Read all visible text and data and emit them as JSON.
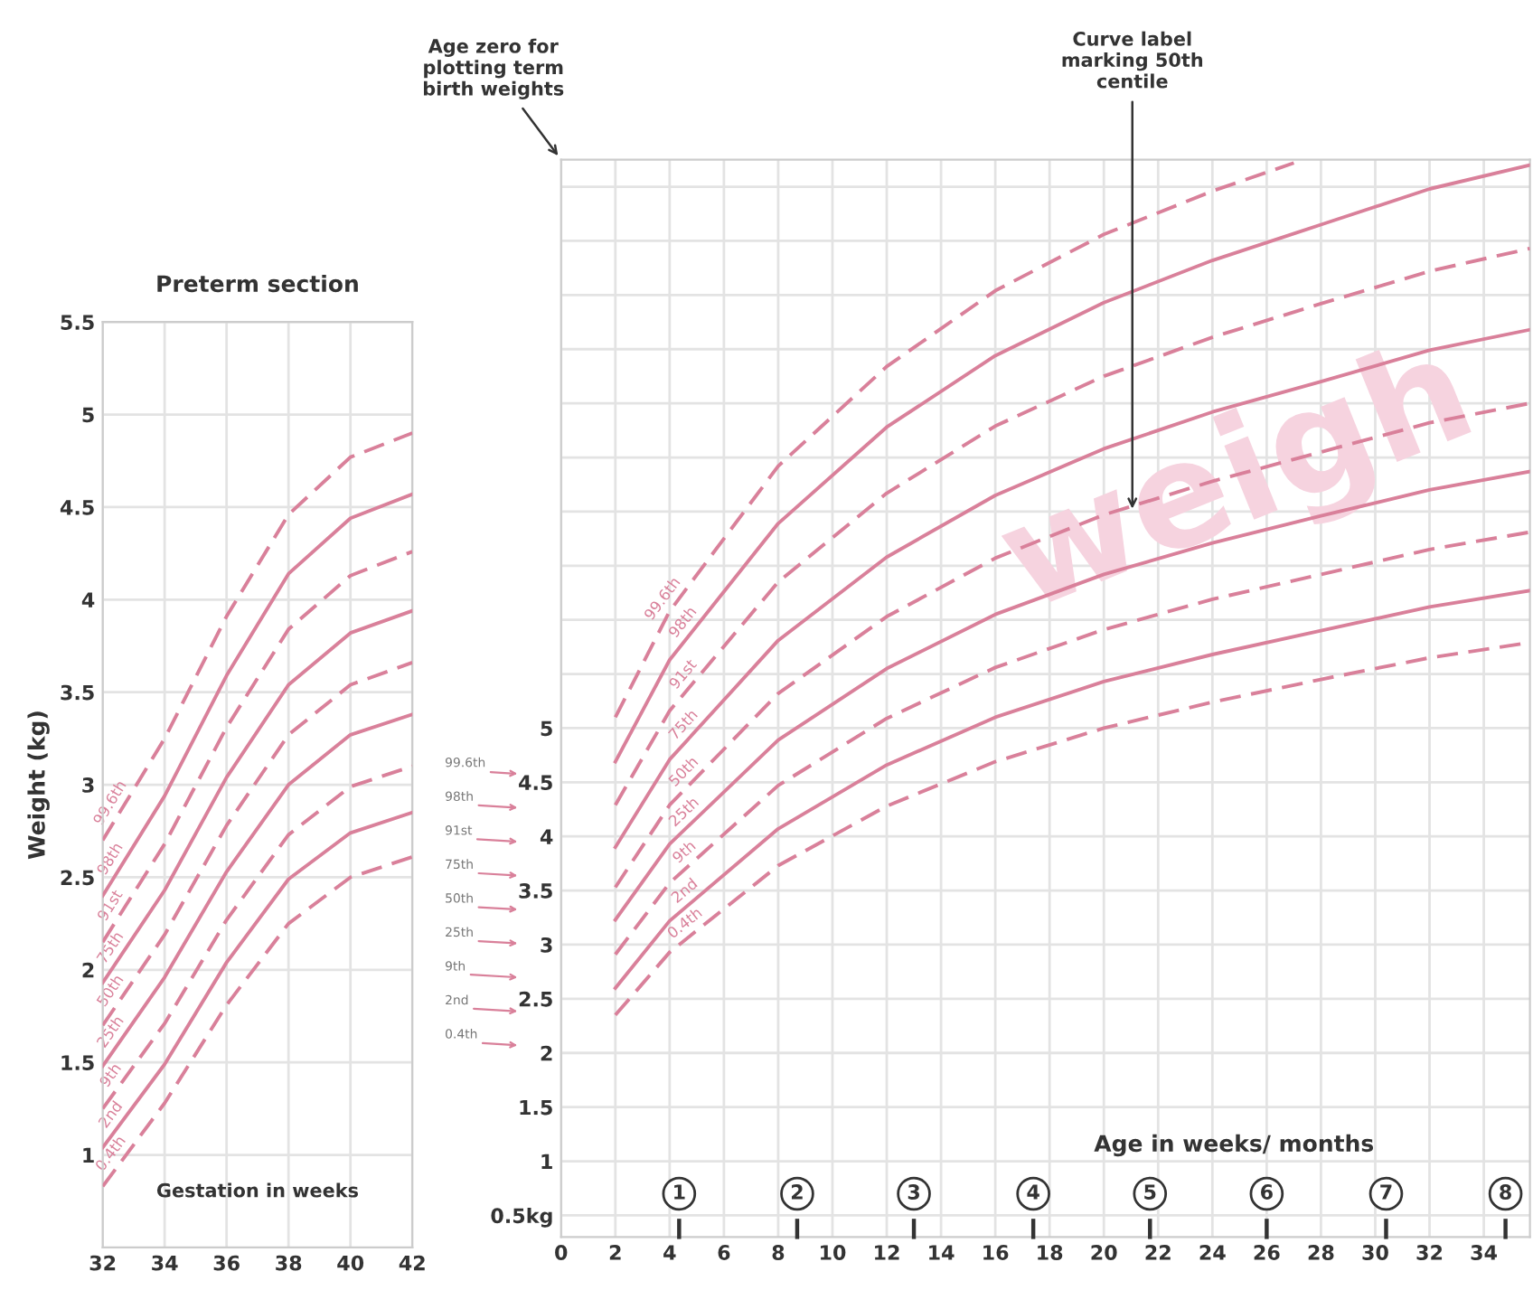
{
  "chart_data": [
    {
      "type": "line",
      "title": "Preterm section",
      "xlabel": "Gestation in weeks",
      "ylabel": "Weight (kg)",
      "xlim": [
        32,
        42
      ],
      "ylim": [
        0.5,
        5.5
      ],
      "xticks": [
        32,
        34,
        36,
        38,
        40,
        42
      ],
      "yticks": [
        1,
        1.5,
        2,
        2.5,
        3,
        3.5,
        4,
        4.5,
        5,
        5.5
      ],
      "grid": true,
      "legend": false,
      "series": [
        {
          "name": "99.6th",
          "color": "#d9809a",
          "line_style": "dashed",
          "x": [
            32,
            34,
            36,
            38,
            40,
            42
          ],
          "values": [
            2.7,
            3.25,
            3.91,
            4.46,
            4.77,
            4.9
          ]
        },
        {
          "name": "98th",
          "color": "#d9809a",
          "line_style": "solid",
          "x": [
            32,
            34,
            36,
            38,
            40,
            42
          ],
          "values": [
            2.4,
            2.94,
            3.59,
            4.14,
            4.44,
            4.57
          ]
        },
        {
          "name": "91st",
          "color": "#d9809a",
          "line_style": "dashed",
          "x": [
            32,
            34,
            36,
            38,
            40,
            42
          ],
          "values": [
            2.15,
            2.68,
            3.31,
            3.84,
            4.13,
            4.26
          ]
        },
        {
          "name": "75th",
          "color": "#d9809a",
          "line_style": "solid",
          "x": [
            32,
            34,
            36,
            38,
            40,
            42
          ],
          "values": [
            1.93,
            2.43,
            3.04,
            3.54,
            3.82,
            3.94
          ]
        },
        {
          "name": "50th",
          "color": "#d9809a",
          "line_style": "dashed",
          "x": [
            32,
            34,
            36,
            38,
            40,
            42
          ],
          "values": [
            1.7,
            2.19,
            2.78,
            3.27,
            3.54,
            3.66
          ]
        },
        {
          "name": "25th",
          "color": "#d9809a",
          "line_style": "solid",
          "x": [
            32,
            34,
            36,
            38,
            40,
            42
          ],
          "values": [
            1.48,
            1.96,
            2.53,
            3.0,
            3.27,
            3.38
          ]
        },
        {
          "name": "9th",
          "color": "#d9809a",
          "line_style": "dashed",
          "x": [
            32,
            34,
            36,
            38,
            40,
            42
          ],
          "values": [
            1.25,
            1.71,
            2.27,
            2.73,
            2.99,
            3.1
          ]
        },
        {
          "name": "2nd",
          "color": "#d9809a",
          "line_style": "solid",
          "x": [
            32,
            34,
            36,
            38,
            40,
            42
          ],
          "values": [
            1.04,
            1.49,
            2.04,
            2.49,
            2.74,
            2.85
          ]
        },
        {
          "name": "0.4th",
          "color": "#d9809a",
          "line_style": "dashed",
          "x": [
            32,
            34,
            36,
            38,
            40,
            42
          ],
          "values": [
            0.83,
            1.28,
            1.81,
            2.25,
            2.5,
            2.61
          ]
        }
      ]
    },
    {
      "type": "line",
      "xlabel": "Age in weeks/ months",
      "xlim": [
        0,
        35.7
      ],
      "ylim": [
        0.3,
        10.25
      ],
      "xticks": [
        0,
        2,
        4,
        6,
        8,
        10,
        12,
        14,
        16,
        18,
        20,
        22,
        24,
        26,
        28,
        30,
        32,
        34
      ],
      "yticks": [
        {
          "value": 0.5,
          "label": "0.5kg"
        },
        1,
        1.5,
        2,
        2.5,
        3,
        3.5,
        4,
        4.5,
        5,
        {
          "value": 5.5,
          "label": null
        },
        {
          "value": 6,
          "label": null
        },
        {
          "value": 6.5,
          "label": null
        },
        {
          "value": 7,
          "label": null
        },
        {
          "value": 7.5,
          "label": null
        },
        {
          "value": 8,
          "label": null
        },
        {
          "value": 8.5,
          "label": null
        },
        {
          "value": 9,
          "label": null
        },
        {
          "value": 9.5,
          "label": null
        },
        {
          "value": 10,
          "label": null
        }
      ],
      "grid": true,
      "legend": false,
      "series": [
        {
          "name": "99.6th",
          "color": "#d9809a",
          "line_style": "dashed",
          "x": [
            2,
            4,
            8,
            12,
            16,
            20,
            24,
            27
          ],
          "values": [
            5.1,
            6.08,
            7.42,
            8.34,
            9.04,
            9.56,
            9.96,
            10.22
          ]
        },
        {
          "name": "98th",
          "color": "#d9809a",
          "line_style": "solid",
          "x": [
            2,
            4,
            8,
            12,
            16,
            20,
            24,
            28,
            32,
            35.7
          ],
          "values": [
            4.69,
            5.63,
            6.89,
            7.78,
            8.44,
            8.93,
            9.32,
            9.65,
            9.98,
            10.2
          ]
        },
        {
          "name": "91st",
          "color": "#d9809a",
          "line_style": "dashed",
          "x": [
            2,
            4,
            8,
            12,
            16,
            20,
            24,
            28,
            32,
            35.7
          ],
          "values": [
            4.29,
            5.16,
            6.35,
            7.17,
            7.79,
            8.25,
            8.61,
            8.92,
            9.22,
            9.43
          ]
        },
        {
          "name": "75th",
          "color": "#d9809a",
          "line_style": "solid",
          "x": [
            2,
            4,
            8,
            12,
            16,
            20,
            24,
            28,
            32,
            35.7
          ],
          "values": [
            3.9,
            4.71,
            5.81,
            6.58,
            7.15,
            7.58,
            7.92,
            8.2,
            8.49,
            8.68
          ]
        },
        {
          "name": "50th",
          "color": "#d9809a",
          "line_style": "dashed",
          "x": [
            2,
            4,
            8,
            12,
            16,
            20,
            24,
            28,
            32,
            35.7
          ],
          "values": [
            3.53,
            4.29,
            5.32,
            6.03,
            6.57,
            6.97,
            7.28,
            7.55,
            7.82,
            8.0
          ]
        },
        {
          "name": "25th",
          "color": "#d9809a",
          "line_style": "solid",
          "x": [
            2,
            4,
            8,
            12,
            16,
            20,
            24,
            28,
            32,
            35.7
          ],
          "values": [
            3.23,
            3.93,
            4.89,
            5.55,
            6.05,
            6.42,
            6.71,
            6.96,
            7.2,
            7.37
          ]
        },
        {
          "name": "9th",
          "color": "#d9809a",
          "line_style": "dashed",
          "x": [
            2,
            4,
            8,
            12,
            16,
            20,
            24,
            28,
            32,
            35.7
          ],
          "values": [
            2.91,
            3.57,
            4.47,
            5.09,
            5.56,
            5.91,
            6.19,
            6.42,
            6.65,
            6.81
          ]
        },
        {
          "name": "2nd",
          "color": "#d9809a",
          "line_style": "solid",
          "x": [
            2,
            4,
            8,
            12,
            16,
            20,
            24,
            28,
            32,
            35.7
          ],
          "values": [
            2.6,
            3.22,
            4.07,
            4.66,
            5.1,
            5.43,
            5.68,
            5.9,
            6.12,
            6.27
          ]
        },
        {
          "name": "0.4th",
          "color": "#d9809a",
          "line_style": "dashed",
          "x": [
            2,
            4,
            8,
            12,
            16,
            20,
            24,
            28,
            32,
            35.7
          ],
          "values": [
            2.35,
            2.93,
            3.73,
            4.28,
            4.69,
            5.0,
            5.24,
            5.45,
            5.65,
            5.79
          ]
        }
      ],
      "annotations": [
        "weigh",
        "Age zero for\nplotting term\nbirth weights",
        "99.6th",
        "98th",
        "91st",
        "75th",
        "50th",
        "25th",
        "9th",
        "2nd",
        "0.4th",
        {
          "text": "Curve label\nmarking 50th\ncentile",
          "x": 21.05,
          "y": 6.98
        },
        {
          "text": "1",
          "x": 4.35,
          "y": 0.7
        },
        {
          "text": "2",
          "x": 8.7,
          "y": 0.7
        },
        {
          "text": "3",
          "x": 13.0,
          "y": 0.7
        },
        {
          "text": "4",
          "x": 17.4,
          "y": 0.7
        },
        {
          "text": "5",
          "x": 21.7,
          "y": 0.7
        },
        {
          "text": "6",
          "x": 26.0,
          "y": 0.7
        },
        {
          "text": "7",
          "x": 30.4,
          "y": 0.7
        },
        {
          "text": "8",
          "x": 34.8,
          "y": 0.7
        }
      ]
    }
  ]
}
